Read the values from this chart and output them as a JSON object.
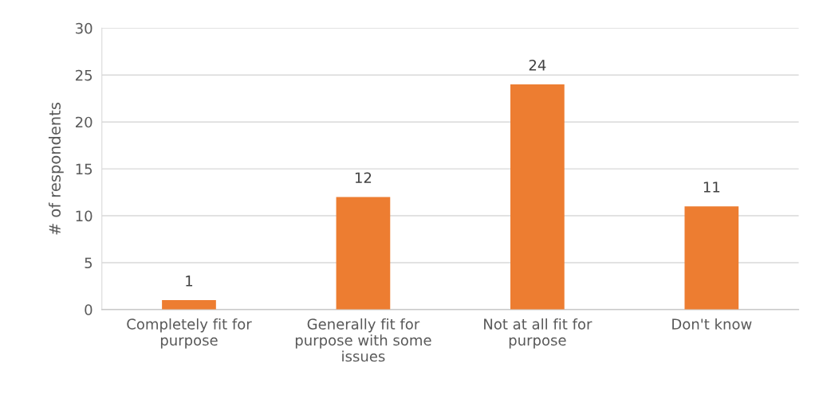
{
  "chart_data": {
    "type": "bar",
    "ylabel": "# of respondents",
    "categories": [
      "Completely fit for purpose",
      "Generally fit for purpose with some issues",
      "Not at all fit for purpose",
      "Don't know"
    ],
    "values": [
      1,
      12,
      24,
      11
    ],
    "color": "#ed7d31",
    "ylim": [
      0,
      30
    ],
    "yticks": [
      0,
      5,
      10,
      15,
      20,
      25,
      30
    ],
    "grid": "y",
    "data_labels": true
  }
}
